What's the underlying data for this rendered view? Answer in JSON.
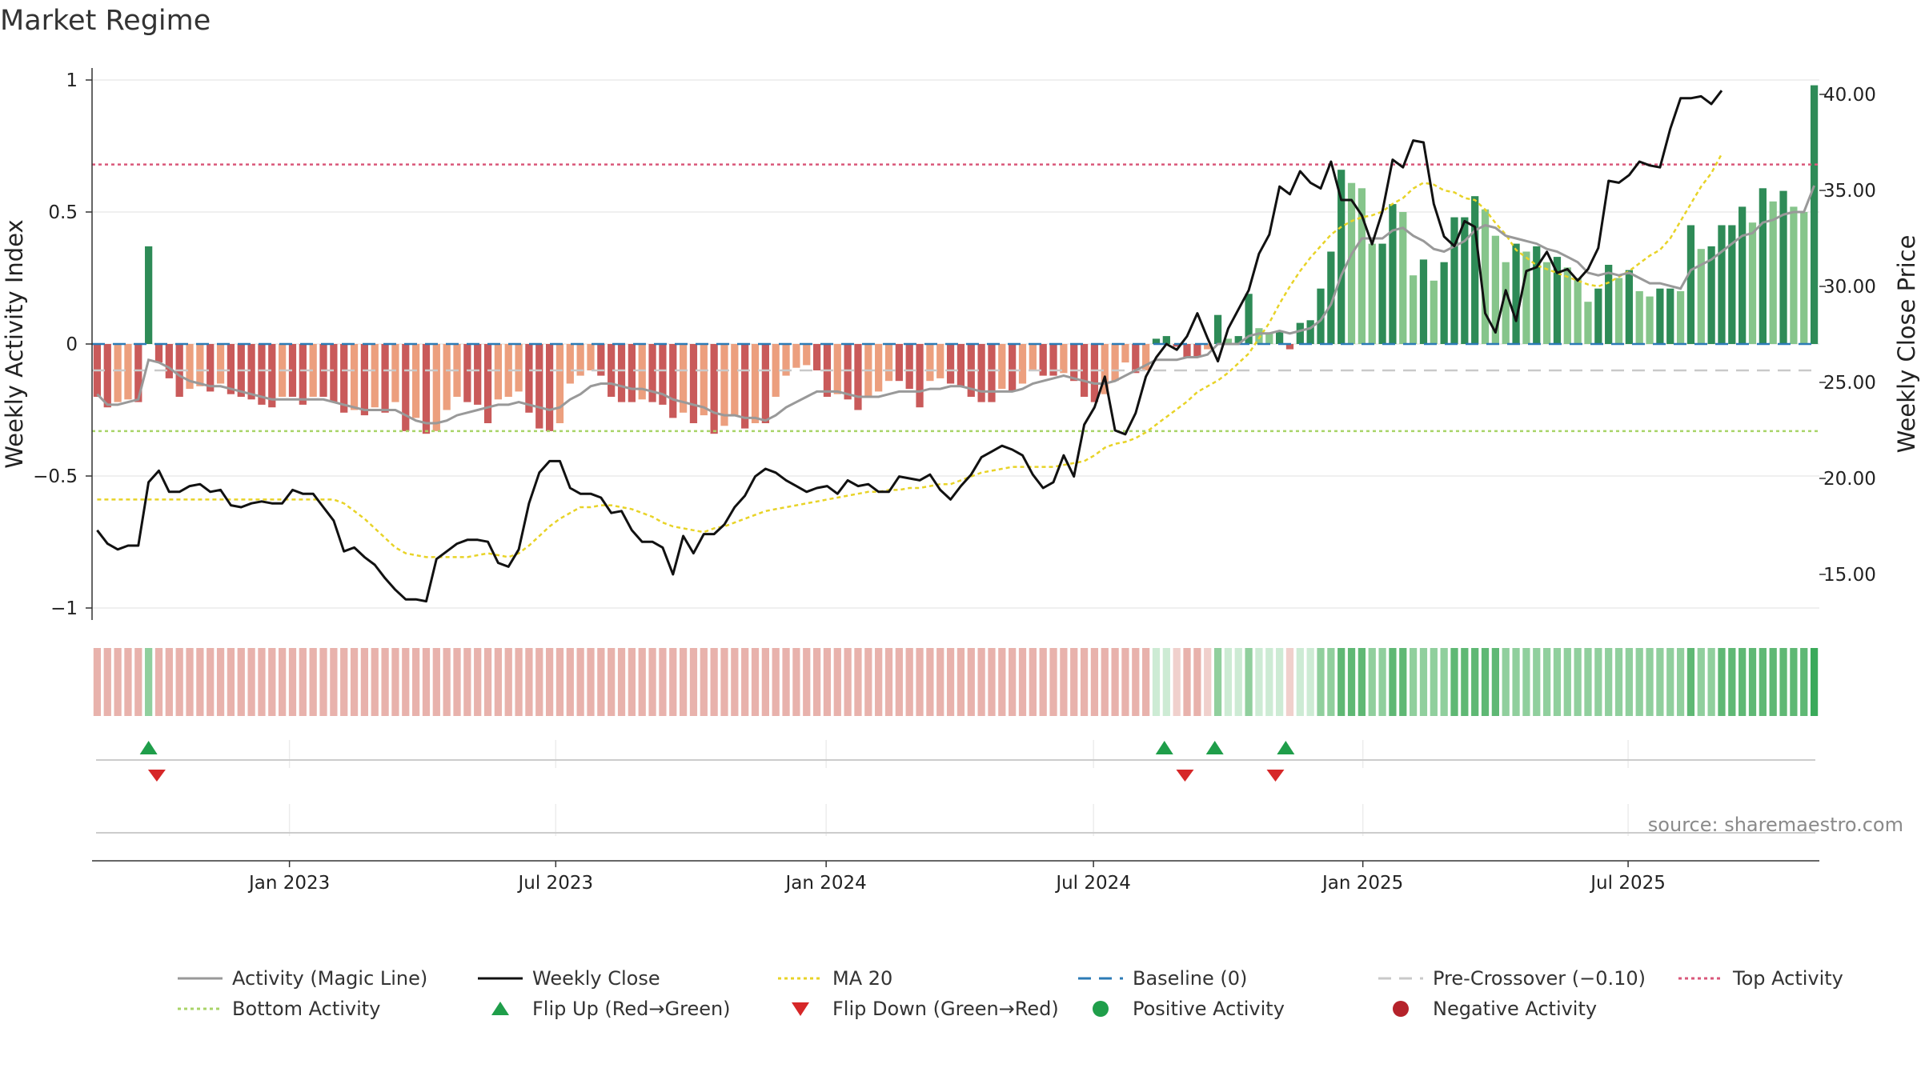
{
  "title": "Market Regime",
  "source": "source: sharemaestro.com",
  "chart_data": {
    "type": "bar",
    "title": "Market Regime",
    "ylabel": "Weekly Activity Index",
    "y2label": "Weekly Close Price",
    "ylim": [
      -1.05,
      1.05
    ],
    "y2lim": [
      12.0,
      42.0
    ],
    "yticks": [
      {
        "v": 1,
        "label": "1"
      },
      {
        "v": 0.5,
        "label": "0.5"
      },
      {
        "v": 0,
        "label": "0"
      },
      {
        "v": -0.5,
        "label": "−0.5"
      },
      {
        "v": -1,
        "label": "−1"
      }
    ],
    "y2ticks": [
      {
        "v": 40,
        "label": "40.00"
      },
      {
        "v": 35,
        "label": "35.00"
      },
      {
        "v": 30,
        "label": "30.00"
      },
      {
        "v": 25,
        "label": "25.00"
      },
      {
        "v": 20,
        "label": "20.00"
      },
      {
        "v": 15,
        "label": "15.00"
      }
    ],
    "xticks": [
      {
        "week": 18.7,
        "label": "Jan 2023"
      },
      {
        "week": 44.6,
        "label": "Jul 2023"
      },
      {
        "week": 70.9,
        "label": "Jan 2024"
      },
      {
        "week": 96.9,
        "label": "Jul 2024"
      },
      {
        "week": 123.1,
        "label": "Jan 2025"
      },
      {
        "week": 148.9,
        "label": "Jul 2025"
      }
    ],
    "reference_lines": {
      "top_activity": 0.68,
      "bottom_activity": -0.33,
      "baseline": 0,
      "pre_crossover": -0.1
    },
    "activity": [
      -0.2,
      -0.24,
      -0.22,
      -0.21,
      -0.22,
      0.37,
      -0.07,
      -0.13,
      -0.2,
      -0.17,
      -0.16,
      -0.18,
      -0.15,
      -0.19,
      -0.2,
      -0.21,
      -0.23,
      -0.24,
      -0.2,
      -0.2,
      -0.23,
      -0.2,
      -0.2,
      -0.22,
      -0.26,
      -0.25,
      -0.27,
      -0.24,
      -0.26,
      -0.22,
      -0.33,
      -0.28,
      -0.34,
      -0.33,
      -0.25,
      -0.2,
      -0.22,
      -0.23,
      -0.3,
      -0.21,
      -0.2,
      -0.18,
      -0.26,
      -0.32,
      -0.33,
      -0.3,
      -0.15,
      -0.12,
      -0.1,
      -0.12,
      -0.2,
      -0.22,
      -0.22,
      -0.21,
      -0.22,
      -0.23,
      -0.28,
      -0.26,
      -0.3,
      -0.27,
      -0.34,
      -0.31,
      -0.27,
      -0.32,
      -0.3,
      -0.3,
      -0.2,
      -0.12,
      -0.09,
      -0.08,
      -0.1,
      -0.2,
      -0.19,
      -0.21,
      -0.25,
      -0.2,
      -0.18,
      -0.14,
      -0.14,
      -0.17,
      -0.24,
      -0.14,
      -0.13,
      -0.15,
      -0.16,
      -0.2,
      -0.22,
      -0.22,
      -0.17,
      -0.18,
      -0.15,
      -0.1,
      -0.12,
      -0.12,
      -0.11,
      -0.14,
      -0.2,
      -0.22,
      -0.19,
      -0.14,
      -0.07,
      -0.11,
      -0.1,
      0.02,
      0.03,
      -0.01,
      -0.05,
      -0.05,
      -0.02,
      0.11,
      0.02,
      0.03,
      0.19,
      0.06,
      0.04,
      0.05,
      -0.02,
      0.08,
      0.09,
      0.21,
      0.35,
      0.66,
      0.61,
      0.59,
      0.38,
      0.38,
      0.53,
      0.5,
      0.26,
      0.32,
      0.24,
      0.31,
      0.48,
      0.48,
      0.56,
      0.51,
      0.41,
      0.31,
      0.38,
      0.35,
      0.37,
      0.31,
      0.33,
      0.29,
      0.25,
      0.16,
      0.21,
      0.3,
      0.25,
      0.28,
      0.2,
      0.18,
      0.21,
      0.21,
      0.2,
      0.45,
      0.36,
      0.37,
      0.45,
      0.45,
      0.52,
      0.46,
      0.59,
      0.54,
      0.58,
      0.52,
      0.5,
      0.98
    ],
    "weekly_close": [
      17.3,
      16.6,
      16.3,
      16.5,
      16.5,
      19.8,
      20.4,
      19.3,
      19.3,
      19.6,
      19.7,
      19.3,
      19.4,
      18.6,
      18.5,
      18.7,
      18.8,
      18.7,
      18.7,
      19.4,
      19.2,
      19.2,
      18.5,
      17.8,
      16.2,
      16.4,
      15.9,
      15.5,
      14.8,
      14.2,
      13.7,
      13.7,
      13.6,
      15.8,
      16.2,
      16.6,
      16.8,
      16.8,
      16.7,
      15.6,
      15.4,
      16.3,
      18.7,
      20.3,
      20.9,
      20.9,
      19.5,
      19.2,
      19.2,
      19.0,
      18.2,
      18.3,
      17.3,
      16.7,
      16.7,
      16.4,
      15.0,
      17.0,
      16.1,
      17.1,
      17.1,
      17.6,
      18.5,
      19.1,
      20.1,
      20.5,
      20.3,
      19.9,
      19.6,
      19.3,
      19.5,
      19.6,
      19.2,
      19.9,
      19.6,
      19.7,
      19.3,
      19.3,
      20.1,
      20.0,
      19.9,
      20.2,
      19.4,
      18.9,
      19.6,
      20.2,
      21.1,
      21.4,
      21.7,
      21.5,
      21.2,
      20.2,
      19.5,
      19.8,
      21.2,
      20.1,
      22.8,
      23.7,
      25.3,
      22.5,
      22.3,
      23.4,
      25.3,
      26.3,
      27.0,
      26.7,
      27.4,
      28.6,
      27.3,
      26.1,
      27.8,
      28.8,
      29.8,
      31.7,
      32.7,
      35.2,
      34.8,
      36.0,
      35.4,
      35.1,
      36.5,
      34.5,
      34.5,
      33.7,
      32.2,
      33.9,
      36.6,
      36.2,
      37.6,
      37.5,
      34.3,
      32.6,
      32.1,
      33.4,
      33.1,
      28.6,
      27.6,
      29.8,
      28.2,
      30.8,
      31.0,
      31.8,
      30.7,
      30.9,
      30.3,
      30.9,
      32.0,
      35.5,
      35.4,
      35.8,
      36.5,
      36.3,
      36.2,
      38.2,
      39.8,
      39.8,
      39.9,
      39.5,
      40.2
    ],
    "ma20": [
      18.9,
      18.9,
      18.9,
      18.9,
      18.9,
      18.9,
      18.9,
      18.9,
      18.9,
      18.9,
      18.9,
      18.9,
      18.9,
      18.9,
      18.9,
      18.9,
      18.9,
      18.9,
      18.9,
      18.9,
      18.9,
      18.9,
      18.9,
      18.9,
      18.7,
      18.3,
      17.9,
      17.4,
      16.9,
      16.4,
      16.1,
      16.0,
      15.9,
      15.9,
      15.9,
      15.9,
      15.9,
      16.0,
      16.1,
      16.0,
      15.9,
      16.1,
      16.5,
      17.0,
      17.5,
      17.9,
      18.2,
      18.5,
      18.5,
      18.6,
      18.6,
      18.5,
      18.4,
      18.2,
      18.0,
      17.7,
      17.5,
      17.4,
      17.3,
      17.2,
      17.4,
      17.5,
      17.7,
      17.9,
      18.1,
      18.3,
      18.4,
      18.5,
      18.6,
      18.7,
      18.8,
      18.9,
      19.0,
      19.1,
      19.2,
      19.3,
      19.3,
      19.4,
      19.4,
      19.5,
      19.5,
      19.6,
      19.7,
      19.7,
      19.9,
      20.1,
      20.3,
      20.4,
      20.5,
      20.6,
      20.6,
      20.6,
      20.6,
      20.6,
      20.7,
      20.8,
      20.9,
      21.2,
      21.6,
      21.8,
      21.9,
      22.1,
      22.4,
      22.8,
      23.2,
      23.6,
      24.0,
      24.5,
      24.8,
      25.1,
      25.5,
      26.0,
      26.5,
      27.3,
      28.1,
      29.1,
      30.0,
      30.8,
      31.5,
      32.1,
      32.7,
      33.1,
      33.4,
      33.6,
      33.7,
      33.9,
      34.3,
      34.6,
      35.1,
      35.4,
      35.3,
      35.0,
      34.9,
      34.6,
      34.5,
      34.0,
      33.3,
      32.7,
      31.9,
      31.5,
      31.1,
      30.9,
      30.7,
      30.5,
      30.3,
      30.1,
      30.0,
      30.2,
      30.5,
      30.8,
      31.2,
      31.6,
      31.9,
      32.5,
      33.4,
      34.3,
      35.2,
      35.9,
      36.9
    ],
    "magic_line": [
      -0.19,
      -0.23,
      -0.23,
      -0.22,
      -0.21,
      -0.06,
      -0.07,
      -0.09,
      -0.12,
      -0.14,
      -0.15,
      -0.16,
      -0.16,
      -0.17,
      -0.18,
      -0.19,
      -0.2,
      -0.21,
      -0.21,
      -0.21,
      -0.21,
      -0.21,
      -0.21,
      -0.22,
      -0.23,
      -0.24,
      -0.25,
      -0.25,
      -0.25,
      -0.25,
      -0.27,
      -0.29,
      -0.3,
      -0.3,
      -0.29,
      -0.27,
      -0.26,
      -0.25,
      -0.24,
      -0.23,
      -0.23,
      -0.22,
      -0.23,
      -0.24,
      -0.25,
      -0.24,
      -0.21,
      -0.19,
      -0.16,
      -0.15,
      -0.15,
      -0.16,
      -0.17,
      -0.17,
      -0.18,
      -0.19,
      -0.21,
      -0.22,
      -0.23,
      -0.24,
      -0.26,
      -0.27,
      -0.27,
      -0.28,
      -0.28,
      -0.29,
      -0.27,
      -0.24,
      -0.22,
      -0.2,
      -0.18,
      -0.18,
      -0.18,
      -0.19,
      -0.2,
      -0.2,
      -0.2,
      -0.19,
      -0.18,
      -0.18,
      -0.18,
      -0.17,
      -0.17,
      -0.16,
      -0.16,
      -0.17,
      -0.18,
      -0.18,
      -0.18,
      -0.18,
      -0.17,
      -0.15,
      -0.14,
      -0.13,
      -0.12,
      -0.13,
      -0.14,
      -0.15,
      -0.15,
      -0.14,
      -0.12,
      -0.1,
      -0.08,
      -0.06,
      -0.06,
      -0.06,
      -0.05,
      -0.05,
      -0.04,
      0.0,
      0.0,
      0.0,
      0.03,
      0.04,
      0.04,
      0.05,
      0.04,
      0.05,
      0.06,
      0.09,
      0.15,
      0.26,
      0.34,
      0.4,
      0.4,
      0.4,
      0.43,
      0.44,
      0.41,
      0.39,
      0.36,
      0.35,
      0.37,
      0.39,
      0.43,
      0.45,
      0.44,
      0.41,
      0.4,
      0.39,
      0.38,
      0.36,
      0.35,
      0.33,
      0.31,
      0.27,
      0.26,
      0.27,
      0.26,
      0.27,
      0.25,
      0.23,
      0.23,
      0.22,
      0.21,
      0.28,
      0.3,
      0.32,
      0.35,
      0.38,
      0.41,
      0.42,
      0.46,
      0.47,
      0.49,
      0.5,
      0.5,
      0.6
    ],
    "flip_up_weeks": [
      5.0,
      103.8,
      108.7,
      115.6
    ],
    "flip_down_weeks": [
      5.8,
      105.8,
      114.6
    ],
    "regime_strip": "Weekly activity regime strip: red tones for negative weeks, green tones for positive weeks",
    "legend": [
      {
        "label": "Activity (Magic Line)",
        "symbol": "line",
        "color": "#999999"
      },
      {
        "label": "Weekly Close",
        "symbol": "line",
        "color": "#111111"
      },
      {
        "label": "MA 20",
        "symbol": "dotted",
        "color": "#e8d327"
      },
      {
        "label": "Baseline (0)",
        "symbol": "dashed",
        "color": "#2c7bb6"
      },
      {
        "label": "Pre-Crossover (−0.10)",
        "symbol": "dashed-light",
        "color": "#c9c9c9"
      },
      {
        "label": "Top Activity",
        "symbol": "dotted",
        "color": "#d9577a"
      },
      {
        "label": "Bottom Activity",
        "symbol": "dotted",
        "color": "#a9d468"
      },
      {
        "label": "Flip Up (Red→Green)",
        "symbol": "triangle-up",
        "color": "#1f9e4a"
      },
      {
        "label": "Flip Down (Green→Red)",
        "symbol": "triangle-down",
        "color": "#d62728"
      },
      {
        "label": "Positive Activity",
        "symbol": "circle",
        "color": "#1f9e4a"
      },
      {
        "label": "Negative Activity",
        "symbol": "circle",
        "color": "#b5222a"
      }
    ]
  },
  "colors": {
    "pos_dark": "#2e8b57",
    "pos_light": "#86c58b",
    "neg_dark": "#c95a5a",
    "neg_light": "#ec9f7e",
    "strip_neg": "#e8b2ac",
    "strip_neg_light": "#f0d0cc",
    "strip_pos_light": "#cdebd4",
    "strip_pos": "#90cf9d",
    "strip_pos_strong": "#5fb874"
  }
}
